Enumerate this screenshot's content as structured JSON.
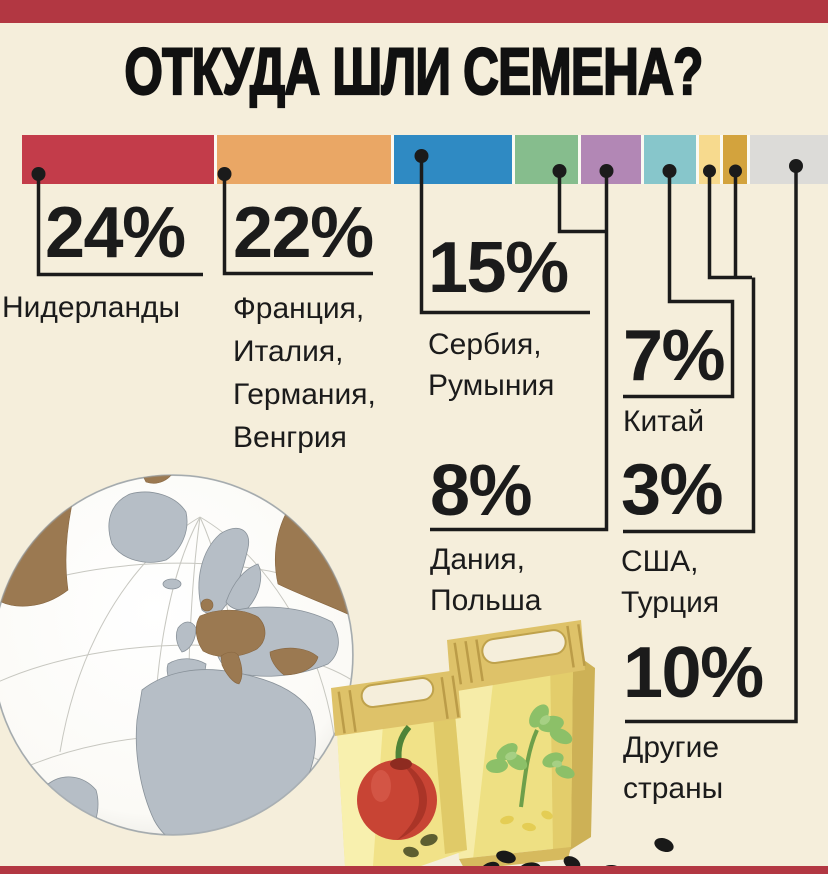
{
  "page": {
    "background_color": "#f5eedb",
    "band_color": "#b23742",
    "text_color": "#1b1b1b",
    "connector_line_color": "#1b1b1b"
  },
  "header": {
    "title": "ОТКУДА ШЛИ СЕМЕНА?"
  },
  "chart_data": {
    "type": "bar",
    "variant": "horizontal-stacked-100pct",
    "title": "ОТКУДА ШЛИ СЕМЕНА?",
    "unit": "%",
    "legend_position": "callout-labels-below-bar",
    "grid": false,
    "segments": [
      {
        "id": "netherlands",
        "color": "#c33c4a",
        "share": 24.5
      },
      {
        "id": "france-italy-germany-hungary",
        "color": "#eaa765",
        "share": 22.3
      },
      {
        "id": "serbia-romania",
        "color": "#2f8ac3",
        "share": 15.1
      },
      {
        "id": "denmark",
        "color": "#86bd8d",
        "share": 8.1
      },
      {
        "id": "poland",
        "color": "#b287b5",
        "share": 7.6
      },
      {
        "id": "china",
        "color": "#87c6cb",
        "share": 6.7
      },
      {
        "id": "usa",
        "color": "#f7da8e",
        "share": 2.7
      },
      {
        "id": "turkey",
        "color": "#d3a33d",
        "share": 3.0
      },
      {
        "id": "other-countries",
        "color": "#dcdbd8",
        "share": 10.0
      }
    ],
    "callouts": [
      {
        "value": 24,
        "value_label": "24%",
        "lines": [
          "Нидерланды"
        ]
      },
      {
        "value": 22,
        "value_label": "22%",
        "lines": [
          "Франция,",
          "Италия,",
          "Германия,",
          "Венгрия"
        ]
      },
      {
        "value": 15,
        "value_label": "15%",
        "lines": [
          "Сербия,",
          "Румыния"
        ]
      },
      {
        "value": 8,
        "value_label": "8%",
        "lines": [
          "Дания,",
          "Польша"
        ]
      },
      {
        "value": 7,
        "value_label": "7%",
        "lines": [
          "Китай"
        ]
      },
      {
        "value": 3,
        "value_label": "3%",
        "lines": [
          "США,",
          "Турция"
        ]
      },
      {
        "value": 10,
        "value_label": "10%",
        "lines": [
          "Другие",
          "страны"
        ]
      }
    ]
  },
  "illustrations": {
    "globe": "globe-centered-on-europe-with-brown-highlighted-countries",
    "packets": "two-yellow-seed-packets-apple-and-parsley",
    "seeds": "scattered-black-seeds"
  }
}
